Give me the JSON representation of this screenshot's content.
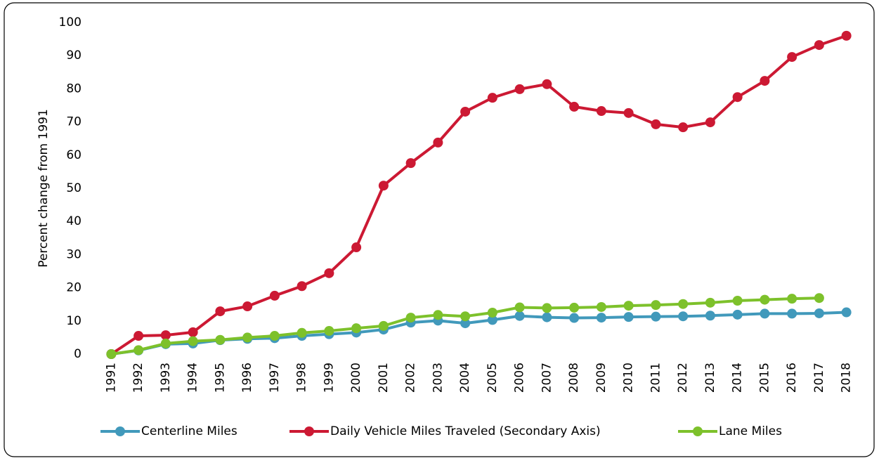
{
  "chart_data": {
    "type": "line",
    "y_label": "Percent change from 1991",
    "categories": [
      "1991",
      "1992",
      "1993",
      "1994",
      "1995",
      "1996",
      "1997",
      "1998",
      "1999",
      "2000",
      "2001",
      "2002",
      "2003",
      "2004",
      "2005",
      "2006",
      "2007",
      "2008",
      "2009",
      "2010",
      "2011",
      "2012",
      "2013",
      "2014",
      "2015",
      "2016",
      "2017",
      "2018"
    ],
    "series": [
      {
        "name": "Centerline Miles",
        "color": "#4199bb",
        "values": [
          0,
          1.1,
          3.0,
          3.2,
          4.2,
          4.6,
          4.8,
          5.5,
          6.0,
          6.5,
          7.4,
          9.5,
          10.1,
          9.3,
          10.3,
          11.5,
          11.1,
          10.9,
          11.0,
          11.2,
          11.3,
          11.4,
          11.6,
          11.9,
          12.2,
          12.2,
          12.3,
          12.6
        ]
      },
      {
        "name": "Daily Vehicle Miles Traveled (Secondary Axis)",
        "color": "#cc1933",
        "values": [
          0,
          5.5,
          5.7,
          6.6,
          12.9,
          14.4,
          17.6,
          20.5,
          24.4,
          32.2,
          50.8,
          57.6,
          63.8,
          73.1,
          77.3,
          79.9,
          81.4,
          74.6,
          73.3,
          72.7,
          69.3,
          68.4,
          69.9,
          77.5,
          82.4,
          89.6,
          93.2,
          96.0
        ]
      },
      {
        "name": "Lane Miles",
        "color": "#7dc12b",
        "values": [
          0,
          1.2,
          3.2,
          3.9,
          4.3,
          5.0,
          5.5,
          6.4,
          7.0,
          7.8,
          8.5,
          11.0,
          11.8,
          11.4,
          12.5,
          14.1,
          13.9,
          14.0,
          14.2,
          14.6,
          14.8,
          15.1,
          15.5,
          16.1,
          16.4,
          16.7,
          16.9,
          null
        ]
      }
    ],
    "ylim": [
      0,
      100
    ],
    "yticks": [
      0,
      10,
      20,
      30,
      40,
      50,
      60,
      70,
      80,
      90,
      100
    ],
    "grid": false,
    "legend": "bottom"
  }
}
